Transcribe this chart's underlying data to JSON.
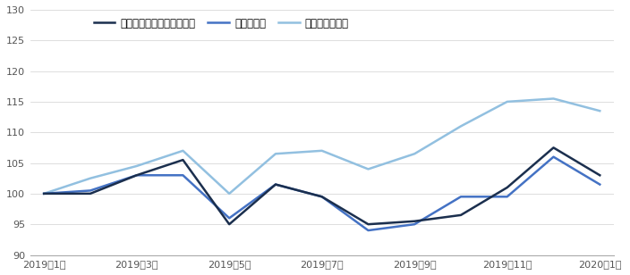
{
  "x_labels": [
    "2019年1月",
    "2019年3月",
    "2019年5月",
    "2019年7月",
    "2019年9月",
    "2019年11月",
    "2020年1月"
  ],
  "x_indices": [
    0,
    1,
    2,
    3,
    4,
    5,
    6,
    7,
    8,
    9,
    10,
    11,
    12
  ],
  "asia_ex_japan": [
    100.0,
    100.0,
    103.0,
    105.5,
    95.0,
    101.5,
    99.5,
    95.0,
    95.5,
    96.5,
    101.0,
    107.5,
    103.0
  ],
  "emerging": [
    100.0,
    100.5,
    103.0,
    103.0,
    96.0,
    101.5,
    99.5,
    94.0,
    95.0,
    99.5,
    99.5,
    106.0,
    101.5
  ],
  "global": [
    100.0,
    102.5,
    104.5,
    107.0,
    100.0,
    106.5,
    107.0,
    104.0,
    106.5,
    111.0,
    115.0,
    115.5,
    113.5
  ],
  "asia_color": "#1b2f4e",
  "emerging_color": "#4472c4",
  "global_color": "#92c0e0",
  "ylim": [
    90,
    130
  ],
  "yticks": [
    90,
    95,
    100,
    105,
    110,
    115,
    120,
    125,
    130
  ],
  "legend_labels": [
    "アジア株式（日本を除く）",
    "新興国株式",
    "グローバル株式"
  ],
  "background_color": "#ffffff",
  "line_width": 1.8
}
